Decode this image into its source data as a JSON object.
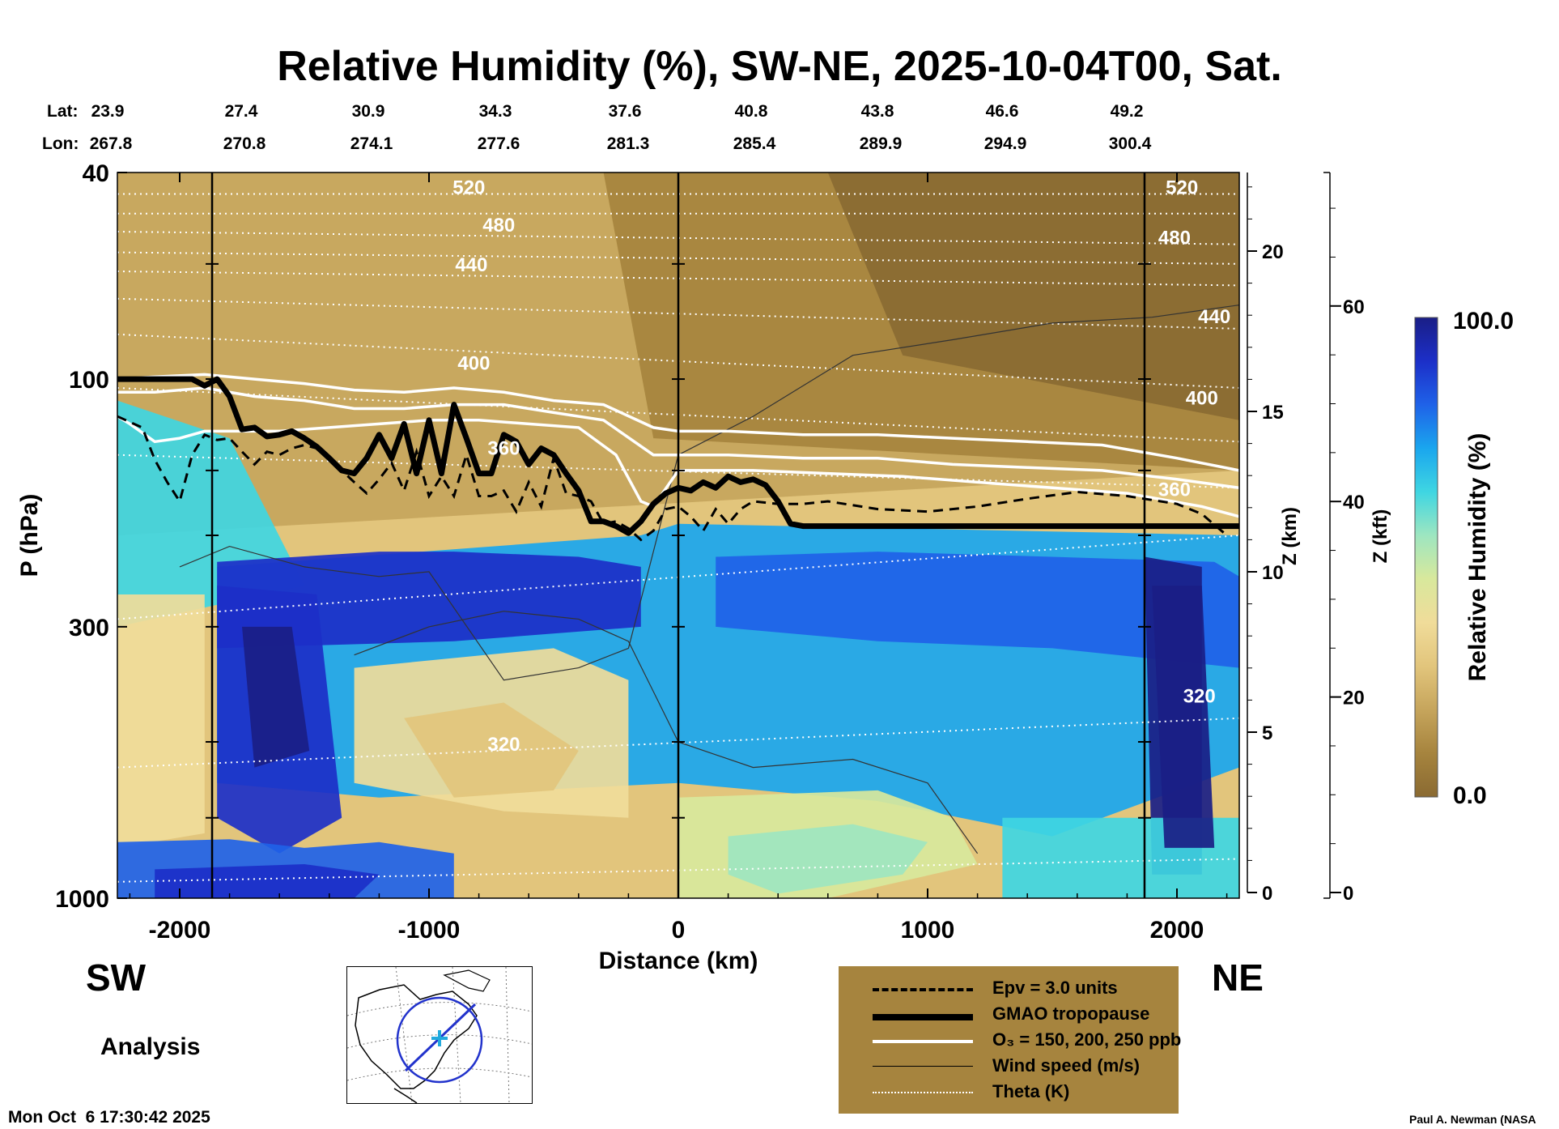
{
  "header": {
    "title": "Relative Humidity (%), SW-NE, 2025-10-04T00, Sat.",
    "lat_label": "Lat:",
    "lon_label": "Lon:",
    "lats": [
      "23.9",
      "27.4",
      "30.9",
      "34.3",
      "37.6",
      "40.8",
      "43.8",
      "46.6",
      "49.2"
    ],
    "lons": [
      "267.8",
      "270.8",
      "274.1",
      "277.6",
      "281.3",
      "285.4",
      "289.9",
      "294.9",
      "300.4"
    ]
  },
  "labels": {
    "sw": "SW",
    "ne": "NE",
    "analysis": "Analysis",
    "timestamp": "Mon Oct  6 17:30:42 2025",
    "credit": "Paul A. Newman (NASA"
  },
  "legend": {
    "items": [
      {
        "style": "dashed",
        "label": "Epv = 3.0 units"
      },
      {
        "style": "thick",
        "label": "GMAO tropopause"
      },
      {
        "style": "white",
        "label": "O₃ = 150, 200, 250 ppb"
      },
      {
        "style": "thin",
        "label": "Wind speed (m/s)"
      },
      {
        "style": "dotted",
        "label": "Theta (K)"
      }
    ]
  },
  "colorbar": {
    "title": "Relative Humidity (%)",
    "max_label": "100.0",
    "min_label": "0.0",
    "range": [
      0,
      100
    ],
    "colors": [
      "#8a6a32",
      "#a6843e",
      "#c6a55c",
      "#e2c57c",
      "#f0dc9a",
      "#d8e89c",
      "#9ee6c0",
      "#3fd6e2",
      "#1aa6ee",
      "#1f62e8",
      "#1c2fc8",
      "#1a1e86"
    ]
  },
  "chart_data": {
    "type": "heatmap",
    "title": "Relative Humidity (%), SW-NE, 2025-10-04T00, Sat.",
    "xlabel": "Distance (km)",
    "ylabel": "P (hPa)",
    "xlim": [
      -2250,
      2250
    ],
    "ylim_hpa": [
      1000,
      40
    ],
    "x_ticks": [
      -2000,
      -1000,
      0,
      1000,
      2000
    ],
    "x_tick_labels": [
      "-2000",
      "-1000",
      "0",
      "1000",
      "2000"
    ],
    "y_ticks": [
      40,
      100,
      300,
      1000
    ],
    "y_tick_labels": [
      "40",
      "100",
      "300",
      "1000"
    ],
    "right_axis_km": {
      "label": "Z (km)",
      "ticks": [
        0,
        5,
        10,
        15,
        20
      ],
      "tick_labels": [
        "0",
        "5",
        "10",
        "15",
        "20"
      ]
    },
    "right_axis_kft": {
      "label": "Z (kft)",
      "ticks": [
        0,
        20,
        40,
        60
      ],
      "tick_labels": [
        "0",
        "20",
        "40",
        "60"
      ]
    },
    "vertical_lines_km": [
      -1870,
      0,
      1870
    ],
    "tropopause": {
      "name": "GMAO tropopause",
      "x": [
        -2250,
        -2000,
        -1950,
        -1900,
        -1850,
        -1800,
        -1750,
        -1700,
        -1650,
        -1600,
        -1550,
        -1500,
        -1450,
        -1400,
        -1350,
        -1300,
        -1250,
        -1200,
        -1150,
        -1100,
        -1050,
        -1000,
        -950,
        -900,
        -850,
        -800,
        -750,
        -700,
        -650,
        -600,
        -550,
        -500,
        -450,
        -400,
        -350,
        -300,
        -250,
        -200,
        -150,
        -100,
        -50,
        0,
        50,
        100,
        150,
        200,
        250,
        300,
        350,
        400,
        450,
        500,
        550,
        2250
      ],
      "p": [
        100,
        100,
        100,
        103,
        100,
        108,
        125,
        124,
        129,
        128,
        126,
        130,
        135,
        142,
        150,
        152,
        142,
        128,
        142,
        122,
        152,
        120,
        152,
        112,
        130,
        152,
        152,
        128,
        132,
        146,
        136,
        140,
        152,
        164,
        188,
        188,
        192,
        198,
        188,
        174,
        166,
        162,
        164,
        158,
        162,
        154,
        158,
        156,
        160,
        172,
        190,
        192,
        192,
        192
      ]
    },
    "epv_line": {
      "name": "Epv = 3.0 units",
      "x": [
        -2250,
        -2200,
        -2150,
        -2100,
        -2050,
        -2000,
        -1950,
        -1900,
        -1850,
        -1800,
        -1750,
        -1700,
        -1650,
        -1600,
        -1550,
        -1500,
        -1450,
        -1400,
        -1350,
        -1300,
        -1250,
        -1200,
        -1150,
        -1100,
        -1050,
        -1000,
        -950,
        -900,
        -850,
        -800,
        -750,
        -700,
        -650,
        -600,
        -550,
        -500,
        -450,
        -400,
        -350,
        -300,
        -250,
        -200,
        -150,
        -100,
        -50,
        0,
        50,
        100,
        150,
        200,
        250,
        300,
        400,
        500,
        600,
        800,
        1000,
        1200,
        1400,
        1600,
        1800,
        2000,
        2100,
        2200
      ],
      "p": [
        118,
        121,
        124,
        143,
        158,
        172,
        140,
        128,
        131,
        130,
        138,
        146,
        138,
        140,
        136,
        134,
        136,
        142,
        150,
        158,
        166,
        156,
        145,
        164,
        138,
        168,
        154,
        168,
        140,
        168,
        168,
        164,
        180,
        158,
        176,
        142,
        166,
        168,
        172,
        190,
        188,
        194,
        204,
        196,
        178,
        176,
        184,
        196,
        178,
        190,
        178,
        172,
        174,
        174,
        172,
        178,
        180,
        176,
        170,
        165,
        168,
        174,
        182,
        200
      ]
    },
    "ozone_contours": [
      {
        "level_ppb": 150,
        "x": [
          -2250,
          -2100,
          -1900,
          -1700,
          -1500,
          -1300,
          -1100,
          -900,
          -700,
          -500,
          -300,
          -100,
          0,
          200,
          500,
          800,
          1100,
          1400,
          1700,
          2000,
          2250
        ],
        "p": [
          100,
          99,
          98,
          100,
          102,
          105,
          106,
          104,
          106,
          110,
          112,
          124,
          126,
          126,
          128,
          128,
          130,
          132,
          134,
          142,
          150
        ]
      },
      {
        "level_ppb": 200,
        "x": [
          -2250,
          -2100,
          -1900,
          -1700,
          -1500,
          -1300,
          -1100,
          -900,
          -700,
          -500,
          -300,
          -100,
          0,
          200,
          500,
          800,
          1100,
          1400,
          1700,
          2000,
          2250
        ],
        "p": [
          106,
          106,
          104,
          108,
          110,
          114,
          114,
          112,
          112,
          116,
          120,
          140,
          140,
          140,
          142,
          142,
          146,
          148,
          150,
          156,
          162
        ]
      },
      {
        "level_ppb": 250,
        "x": [
          -2250,
          -2200,
          -2100,
          -2000,
          -1900,
          -1800,
          -1600,
          -1400,
          -1200,
          -1000,
          -800,
          -600,
          -400,
          -250,
          -150,
          -100,
          0,
          300,
          600,
          900,
          1200,
          1500,
          1800,
          2100,
          2250
        ],
        "p": [
          118,
          122,
          132,
          130,
          126,
          126,
          126,
          124,
          122,
          120,
          120,
          122,
          124,
          140,
          172,
          176,
          150,
          150,
          152,
          154,
          158,
          162,
          166,
          176,
          184
        ]
      }
    ],
    "theta_labels": [
      {
        "value": "520",
        "x": -840,
        "p": 44
      },
      {
        "value": "480",
        "x": -720,
        "p": 52
      },
      {
        "value": "440",
        "x": -830,
        "p": 62
      },
      {
        "value": "400",
        "x": -820,
        "p": 96
      },
      {
        "value": "360",
        "x": -700,
        "p": 140
      },
      {
        "value": "320",
        "x": -700,
        "p": 520
      },
      {
        "value": "520",
        "x": 2020,
        "p": 44
      },
      {
        "value": "480",
        "x": 1990,
        "p": 55
      },
      {
        "value": "440",
        "x": 2150,
        "p": 78
      },
      {
        "value": "400",
        "x": 2100,
        "p": 112
      },
      {
        "value": "360",
        "x": 1990,
        "p": 168
      },
      {
        "value": "320",
        "x": 2090,
        "p": 420
      }
    ],
    "theta_levels_p": [
      {
        "theta": 520,
        "p": [
          44,
          44
        ]
      },
      {
        "theta": 500,
        "p": [
          48,
          48
        ]
      },
      {
        "theta": 480,
        "p": [
          52,
          55
        ]
      },
      {
        "theta": 460,
        "p": [
          57,
          60
        ]
      },
      {
        "theta": 440,
        "p": [
          62,
          66
        ]
      },
      {
        "theta": 420,
        "p": [
          70,
          80
        ]
      },
      {
        "theta": 400,
        "p": [
          82,
          104
        ]
      },
      {
        "theta": 380,
        "p": [
          104,
          132
        ]
      },
      {
        "theta": 360,
        "p": [
          140,
          162
        ]
      },
      {
        "theta": 340,
        "p": [
          290,
          200
        ]
      },
      {
        "theta": 320,
        "p": [
          560,
          450
        ]
      },
      {
        "theta": 300,
        "p": [
          930,
          840
        ]
      }
    ]
  }
}
